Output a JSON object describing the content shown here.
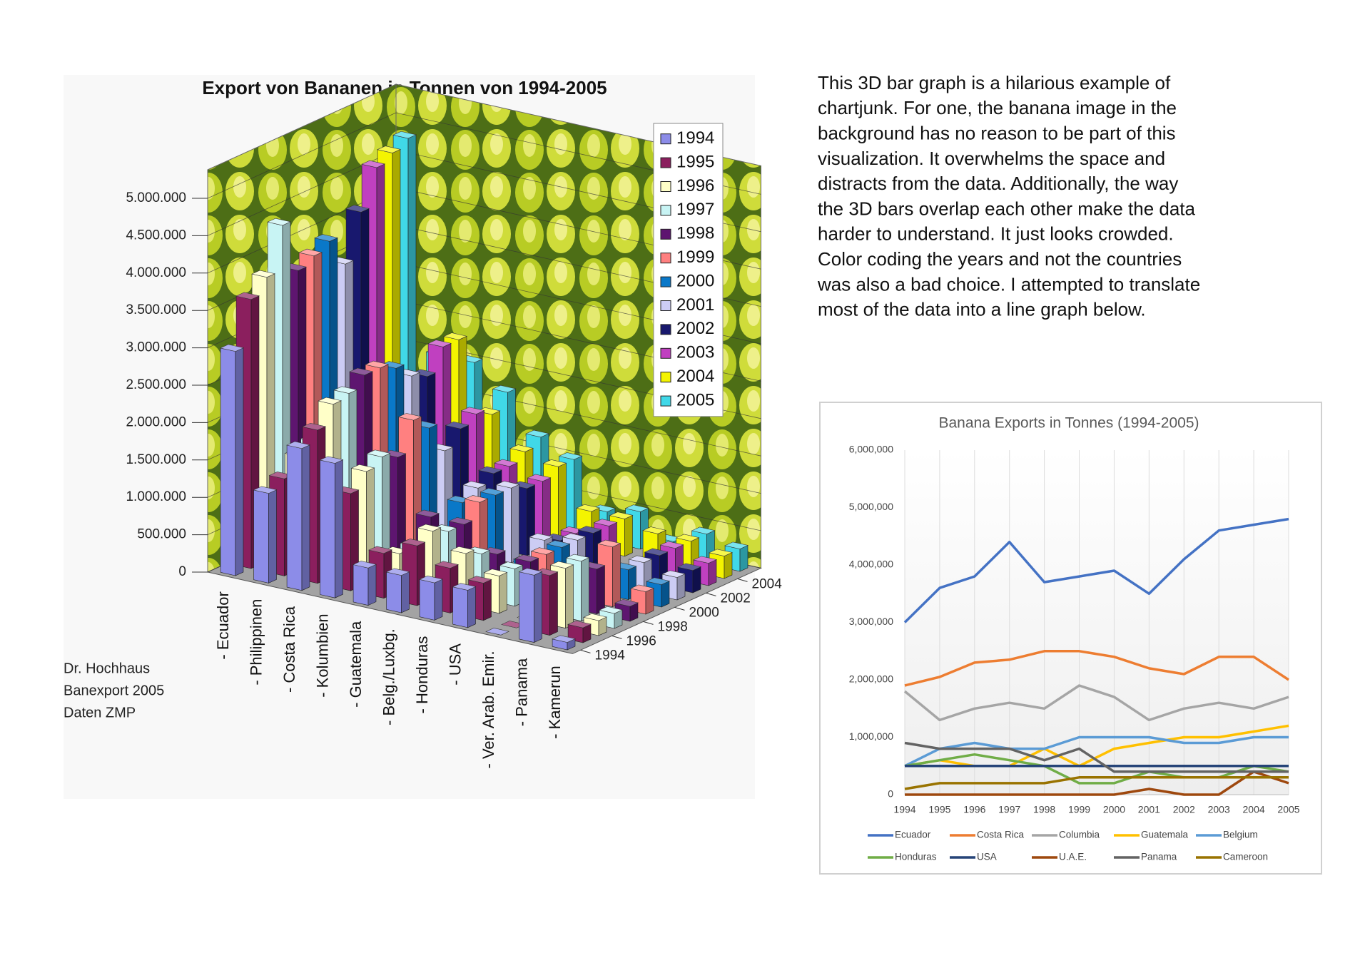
{
  "chart_data": [
    {
      "type": "bar3d",
      "title": "Export von Bananen in Tonnen von 1994-2005",
      "categories": [
        "- Ecuador",
        "- Philippinen",
        "- Costa Rica",
        "- Kolumbien",
        "- Guatemala",
        "- Belg./Luxbg.",
        "- Honduras",
        "- USA",
        "- Ver. Arab. Emir.",
        "- Panama",
        "- Kamerun"
      ],
      "series": [
        {
          "name": "1994",
          "color": "#8c8ce8",
          "values": [
            3000000,
            1200000,
            1900000,
            1800000,
            500000,
            500000,
            500000,
            500000,
            0,
            900000,
            100000
          ]
        },
        {
          "name": "1995",
          "color": "#8b1f5e",
          "values": [
            3600000,
            1300000,
            2050000,
            1300000,
            600000,
            800000,
            600000,
            500000,
            0,
            800000,
            200000
          ]
        },
        {
          "name": "1996",
          "color": "#ffffc8",
          "values": [
            3800000,
            1500000,
            2300000,
            1500000,
            500000,
            900000,
            700000,
            500000,
            0,
            800000,
            200000
          ]
        },
        {
          "name": "1997",
          "color": "#c8f4f4",
          "values": [
            4400000,
            1600000,
            2350000,
            1600000,
            500000,
            800000,
            600000,
            500000,
            0,
            800000,
            200000
          ]
        },
        {
          "name": "1998",
          "color": "#5e1570",
          "values": [
            3700000,
            1400000,
            2500000,
            1500000,
            800000,
            800000,
            500000,
            500000,
            0,
            600000,
            200000
          ]
        },
        {
          "name": "1999",
          "color": "#ff8080",
          "values": [
            3800000,
            1600000,
            2500000,
            1900000,
            500000,
            1000000,
            200000,
            500000,
            0,
            800000,
            300000
          ]
        },
        {
          "name": "2000",
          "color": "#0a78c8",
          "values": [
            3900000,
            1600000,
            2400000,
            1700000,
            800000,
            1000000,
            200000,
            500000,
            0,
            400000,
            300000
          ]
        },
        {
          "name": "2001",
          "color": "#ccccf4",
          "values": [
            3500000,
            1400000,
            2200000,
            1300000,
            900000,
            1000000,
            400000,
            500000,
            100000,
            400000,
            300000
          ]
        },
        {
          "name": "2002",
          "color": "#18186e",
          "values": [
            4100000,
            1700000,
            2100000,
            1500000,
            1000000,
            900000,
            300000,
            500000,
            0,
            400000,
            300000
          ]
        },
        {
          "name": "2003",
          "color": "#c040c0",
          "values": [
            4600000,
            1800000,
            2400000,
            1600000,
            1000000,
            900000,
            300000,
            500000,
            0,
            400000,
            300000
          ]
        },
        {
          "name": "2004",
          "color": "#f4f400",
          "values": [
            4700000,
            1800000,
            2400000,
            1500000,
            1100000,
            1000000,
            500000,
            500000,
            400000,
            400000,
            300000
          ]
        },
        {
          "name": "2005",
          "color": "#40d8e8",
          "values": [
            4800000,
            2000000,
            2000000,
            1700000,
            1200000,
            1000000,
            400000,
            500000,
            200000,
            400000,
            300000
          ]
        }
      ],
      "ylim": [
        0,
        5000000
      ],
      "yticks": [
        0,
        {
          "value": 500000,
          "label": "500.000"
        },
        {
          "value": 1000000,
          "label": "1.000.000"
        },
        {
          "value": 1500000,
          "label": "1.500.000"
        },
        {
          "value": 2000000,
          "label": "2.000.000"
        },
        {
          "value": 2500000,
          "label": "2.500.000"
        },
        {
          "value": 3000000,
          "label": "3.000.000"
        },
        {
          "value": 3500000,
          "label": "3.500.000"
        },
        {
          "value": 4000000,
          "label": "4.000.000"
        },
        {
          "value": 4500000,
          "label": "4.500.000"
        },
        {
          "value": 5000000,
          "label": "5.000.000"
        }
      ],
      "depth_ticks": [
        1994,
        1996,
        1998,
        2000,
        2002,
        2004
      ],
      "grid": true,
      "legend": "right",
      "annotations": [
        "Dr. Hochhaus",
        "Banexport 2005",
        "Daten ZMP"
      ]
    },
    {
      "type": "line",
      "title": "Banana Exports in Tonnes (1994-2005)",
      "categories": [
        1994,
        1995,
        1996,
        1997,
        1998,
        1999,
        2000,
        2001,
        2002,
        2003,
        2004,
        2005
      ],
      "series": [
        {
          "name": "Ecuador",
          "color": "#4472c4",
          "values": [
            3000000,
            3600000,
            3800000,
            4400000,
            3700000,
            3800000,
            3900000,
            3500000,
            4100000,
            4600000,
            4700000,
            4800000
          ]
        },
        {
          "name": "Costa Rica",
          "color": "#ed7d31",
          "values": [
            1900000,
            2050000,
            2300000,
            2350000,
            2500000,
            2500000,
            2400000,
            2200000,
            2100000,
            2400000,
            2400000,
            2000000
          ]
        },
        {
          "name": "Columbia",
          "color": "#a5a5a5",
          "values": [
            1800000,
            1300000,
            1500000,
            1600000,
            1500000,
            1900000,
            1700000,
            1300000,
            1500000,
            1600000,
            1500000,
            1700000
          ]
        },
        {
          "name": "Guatemala",
          "color": "#ffc000",
          "values": [
            500000,
            600000,
            500000,
            500000,
            800000,
            500000,
            800000,
            900000,
            1000000,
            1000000,
            1100000,
            1200000
          ]
        },
        {
          "name": "Belgium",
          "color": "#5b9bd5",
          "values": [
            500000,
            800000,
            900000,
            800000,
            800000,
            1000000,
            1000000,
            1000000,
            900000,
            900000,
            1000000,
            1000000
          ]
        },
        {
          "name": "Honduras",
          "color": "#70ad47",
          "values": [
            500000,
            600000,
            700000,
            600000,
            500000,
            200000,
            200000,
            400000,
            300000,
            300000,
            500000,
            400000
          ]
        },
        {
          "name": "USA",
          "color": "#264478",
          "values": [
            500000,
            500000,
            500000,
            500000,
            500000,
            500000,
            500000,
            500000,
            500000,
            500000,
            500000,
            500000
          ]
        },
        {
          "name": "U.A.E.",
          "color": "#9e480e",
          "values": [
            0,
            0,
            0,
            0,
            0,
            0,
            0,
            100000,
            0,
            0,
            400000,
            200000
          ]
        },
        {
          "name": "Panama",
          "color": "#636363",
          "values": [
            900000,
            800000,
            800000,
            800000,
            600000,
            800000,
            400000,
            400000,
            400000,
            400000,
            400000,
            400000
          ]
        },
        {
          "name": "Cameroon",
          "color": "#997300",
          "values": [
            100000,
            200000,
            200000,
            200000,
            200000,
            300000,
            300000,
            300000,
            300000,
            300000,
            300000,
            300000
          ]
        }
      ],
      "ylim": [
        0,
        6000000
      ],
      "yticks": [
        0,
        {
          "value": 1000000,
          "label": "1,000,000"
        },
        {
          "value": 2000000,
          "label": "2,000,000"
        },
        {
          "value": 3000000,
          "label": "3,000,000"
        },
        {
          "value": 4000000,
          "label": "4,000,000"
        },
        {
          "value": 5000000,
          "label": "5,000,000"
        },
        {
          "value": 6000000,
          "label": "6,000,000"
        }
      ],
      "grid": true,
      "legend": "bottom"
    }
  ],
  "description": {
    "lines": [
      "This 3D bar graph is a hilarious example of",
      "chartjunk. For one, the banana image in the",
      "background has no reason to be part of this",
      "visualization. It overwhelms the space and",
      "distracts from the data. Additionally, the way",
      "the 3D bars overlap each other make the data",
      "harder to understand. It just looks crowded.",
      "Color coding the years and not the countries",
      "was also a bad choice. I attempted to translate",
      "most of the data into a line graph below."
    ]
  }
}
